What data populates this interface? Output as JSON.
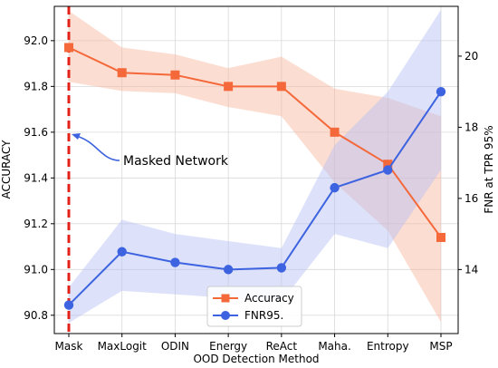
{
  "chart_data": {
    "type": "line",
    "x_categories": [
      "Mask",
      "MaxLogit",
      "ODIN",
      "Energy",
      "ReAct",
      "Maha.",
      "Entropy",
      "MSP"
    ],
    "xlabel": "OOD Detection Method",
    "ylabel_left": "ACCURACY",
    "ylabel_right": "FNR at TPR 95%",
    "ylim_left": [
      90.72,
      92.15
    ],
    "ylim_right": [
      12.2,
      21.4
    ],
    "yticks_left": [
      "90.8",
      "91.0",
      "91.2",
      "91.4",
      "91.6",
      "91.8",
      "92.0"
    ],
    "yticks_right": [
      "14",
      "16",
      "18",
      "20"
    ],
    "grid": true,
    "legend_position": "bottom-center",
    "series": [
      {
        "name": "Accuracy",
        "axis": "left",
        "marker": "square",
        "color": "#f4683a",
        "band_color": "#f8b39a",
        "values": [
          91.97,
          91.86,
          91.85,
          91.8,
          91.8,
          91.6,
          91.46,
          91.14
        ],
        "band_upper": [
          92.13,
          91.97,
          91.94,
          91.88,
          91.93,
          91.79,
          91.75,
          91.67
        ],
        "band_lower": [
          91.82,
          91.78,
          91.77,
          91.71,
          91.67,
          91.38,
          91.17,
          90.77
        ]
      },
      {
        "name": "FNR95.",
        "axis": "right",
        "marker": "circle",
        "color": "#3d63e0",
        "band_color": "#b3bef3",
        "values": [
          13.0,
          14.5,
          14.2,
          14.0,
          14.05,
          16.3,
          16.8,
          19.0
        ],
        "band_upper": [
          13.5,
          15.4,
          15.0,
          14.8,
          14.6,
          17.5,
          19.0,
          21.3
        ],
        "band_lower": [
          12.5,
          13.4,
          13.3,
          13.2,
          13.1,
          15.0,
          14.6,
          16.8
        ]
      }
    ],
    "marker_line": {
      "x": "Mask",
      "style": "dashed",
      "color": "#e32119"
    },
    "annotation": {
      "text": "Masked Network",
      "target_x": "Mask",
      "target_y": 91.6
    }
  }
}
